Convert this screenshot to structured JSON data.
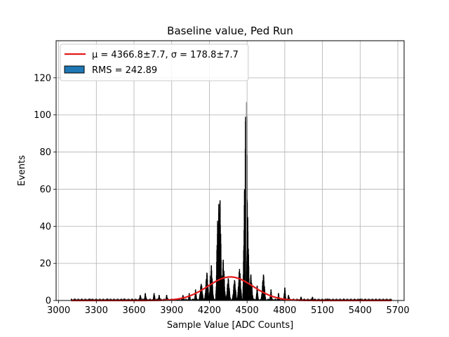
{
  "chart_data": {
    "type": "bar",
    "title": "Baseline value, Ped Run",
    "xlabel": "Sample Value [ADC Counts]",
    "ylabel": "Events",
    "xlim": [
      2980,
      5750
    ],
    "ylim": [
      0,
      140
    ],
    "xticks": [
      3000,
      3300,
      3600,
      3900,
      4200,
      4500,
      4800,
      5100,
      5400,
      5700
    ],
    "yticks": [
      0,
      20,
      40,
      60,
      80,
      100,
      120
    ],
    "grid": true,
    "legend_position": "top-left",
    "legend": [
      {
        "label": "μ = 4366.8±7.7, σ = 178.8±7.7",
        "kind": "line",
        "color": "#e41a1c"
      },
      {
        "label": "RMS = 242.89",
        "kind": "patch",
        "color": "#1f77b4"
      }
    ],
    "histogram_color": "#000000",
    "histogram_peaks": [
      {
        "x": 3130,
        "height": 1
      },
      {
        "x": 3250,
        "height": 1
      },
      {
        "x": 3390,
        "height": 1
      },
      {
        "x": 3520,
        "height": 1
      },
      {
        "x": 3650,
        "height": 3
      },
      {
        "x": 3690,
        "height": 4
      },
      {
        "x": 3760,
        "height": 4
      },
      {
        "x": 3800,
        "height": 3
      },
      {
        "x": 3860,
        "height": 3
      },
      {
        "x": 3990,
        "height": 3
      },
      {
        "x": 4040,
        "height": 4
      },
      {
        "x": 4090,
        "height": 6
      },
      {
        "x": 4135,
        "height": 9
      },
      {
        "x": 4180,
        "height": 15
      },
      {
        "x": 4215,
        "height": 19
      },
      {
        "x": 4265,
        "height": 43
      },
      {
        "x": 4275,
        "height": 52
      },
      {
        "x": 4285,
        "height": 54
      },
      {
        "x": 4310,
        "height": 22
      },
      {
        "x": 4350,
        "height": 12
      },
      {
        "x": 4400,
        "height": 11
      },
      {
        "x": 4440,
        "height": 17
      },
      {
        "x": 4480,
        "height": 60
      },
      {
        "x": 4488,
        "height": 99
      },
      {
        "x": 4495,
        "height": 107
      },
      {
        "x": 4505,
        "height": 45
      },
      {
        "x": 4530,
        "height": 14
      },
      {
        "x": 4580,
        "height": 8
      },
      {
        "x": 4630,
        "height": 14
      },
      {
        "x": 4690,
        "height": 6
      },
      {
        "x": 4750,
        "height": 4
      },
      {
        "x": 4800,
        "height": 7
      },
      {
        "x": 4830,
        "height": 3
      },
      {
        "x": 4930,
        "height": 2
      },
      {
        "x": 5020,
        "height": 2
      },
      {
        "x": 5140,
        "height": 1
      },
      {
        "x": 5270,
        "height": 1
      },
      {
        "x": 5400,
        "height": 1
      }
    ],
    "fit": {
      "type": "gaussian",
      "mu": 4366.8,
      "sigma": 178.8,
      "amplitude": 12.7,
      "x_range": [
        3100,
        5650
      ],
      "color": "#e41a1c"
    }
  }
}
